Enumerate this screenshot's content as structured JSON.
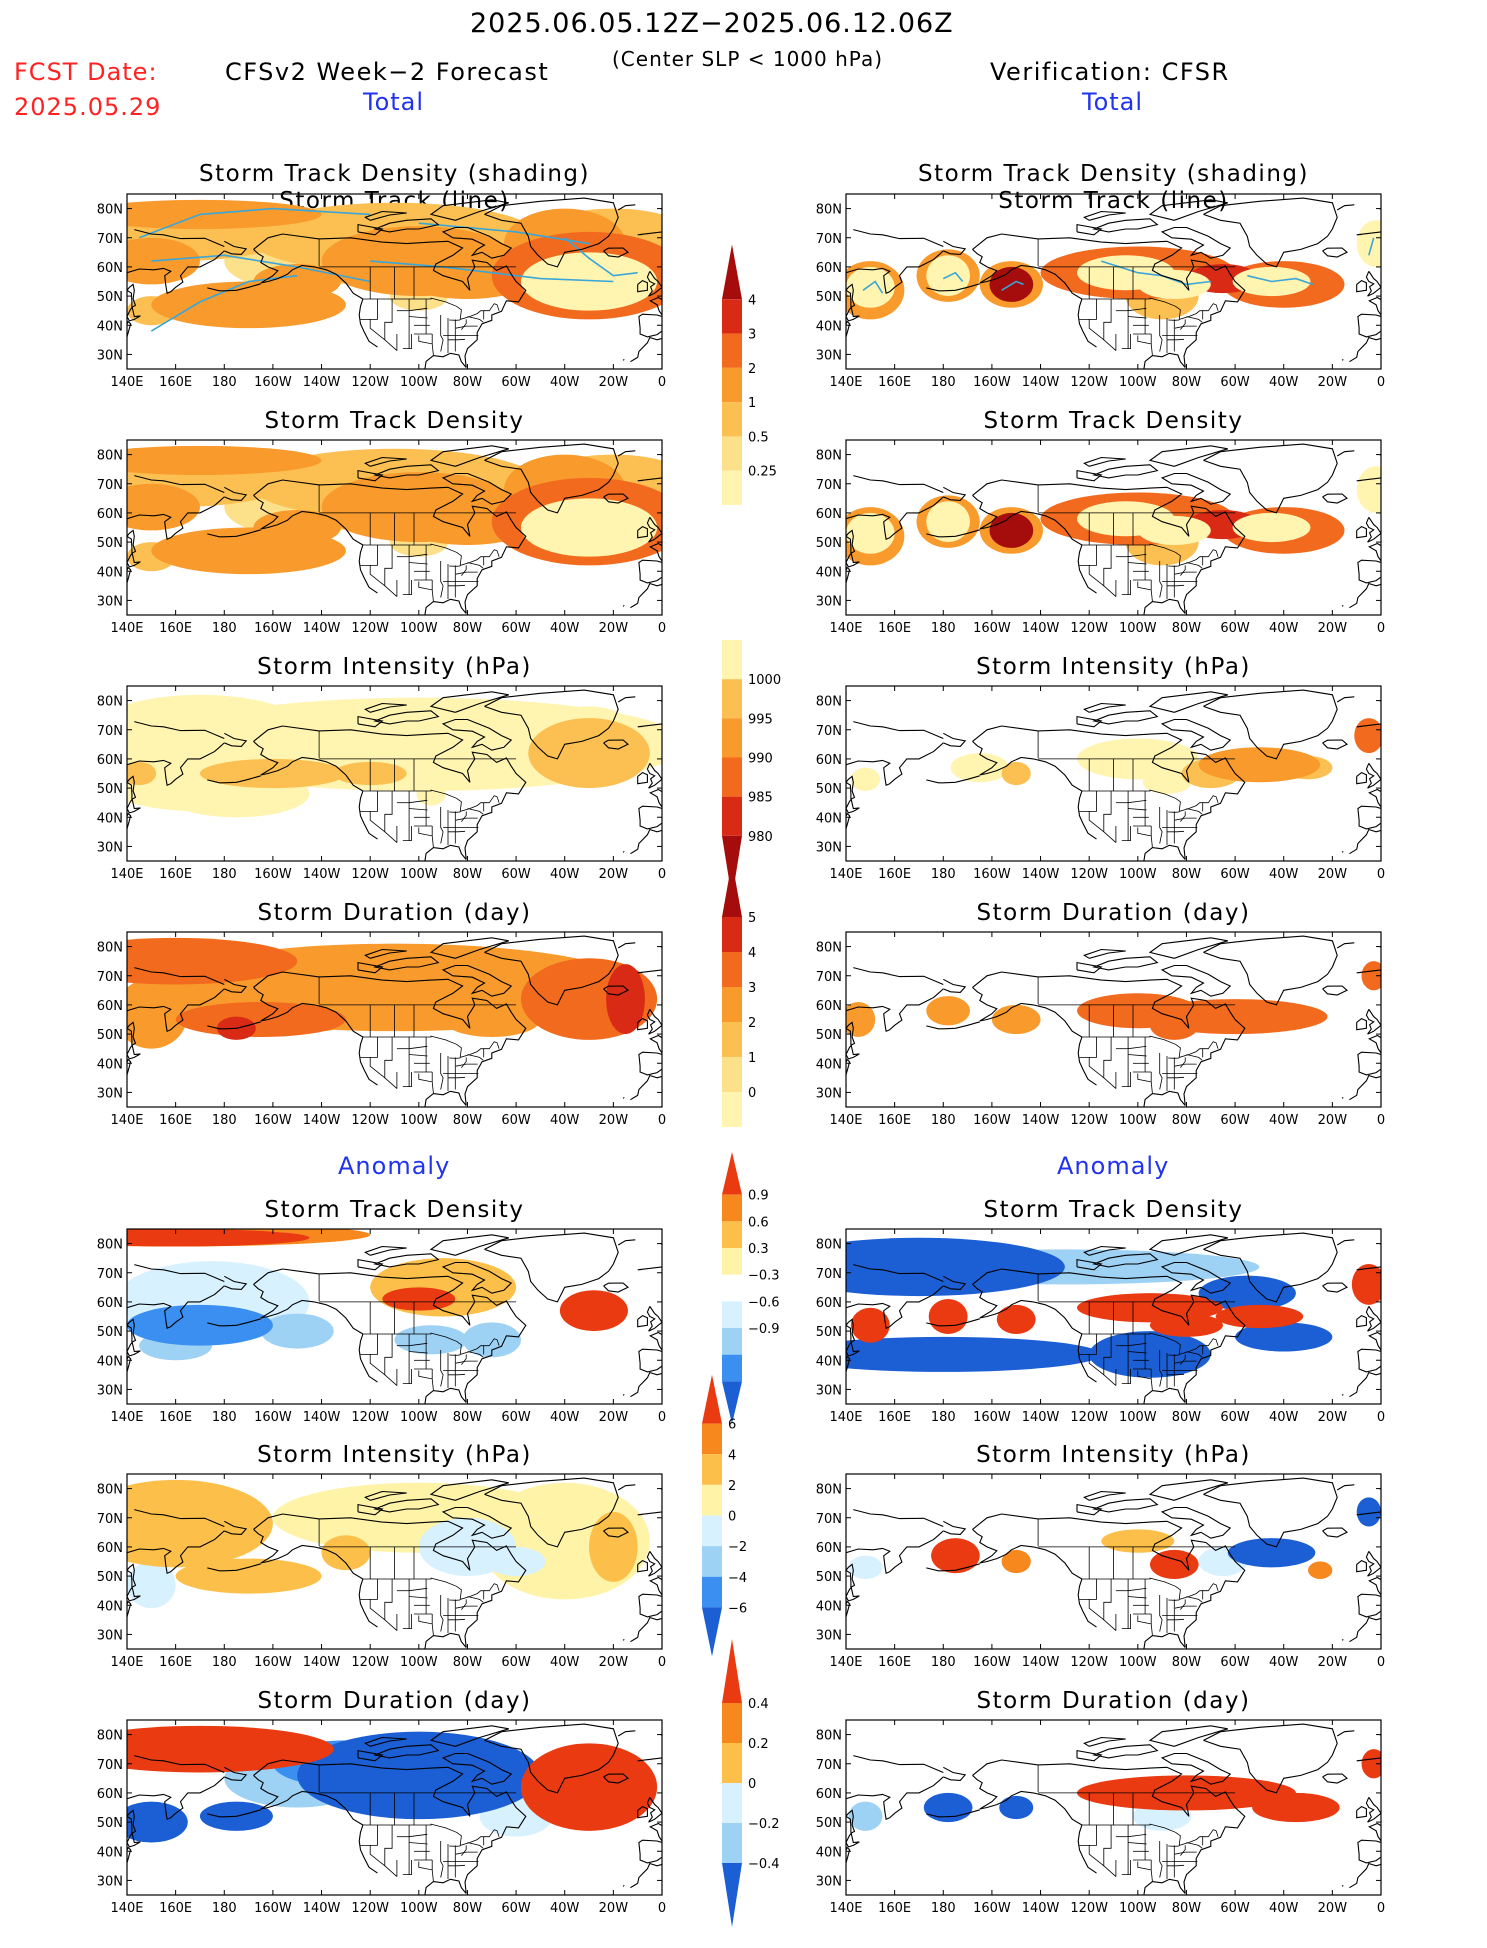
{
  "header": {
    "period": "2025.06.05.12Z−2025.06.12.06Z",
    "criterion": "(Center SLP < 1000 hPa)",
    "fcst_label": "FCST Date:",
    "fcst_date": "2025.05.29",
    "left_title": "CFSv2 Week−2 Forecast",
    "right_title": "Verification: CFSR",
    "total_label": "Total",
    "anomaly_label": "Anomaly"
  },
  "map": {
    "lon_labels": [
      "140E",
      "160E",
      "180",
      "160W",
      "140W",
      "120W",
      "100W",
      "80W",
      "60W",
      "40W",
      "20W",
      "0"
    ],
    "lat_labels": [
      "80N",
      "70N",
      "60N",
      "50N",
      "40N",
      "30N"
    ]
  },
  "colors": {
    "coast": "#000000",
    "track": "#3aa6d8",
    "dens": [
      "#fff4b0",
      "#fde08a",
      "#fcc052",
      "#f99a2c",
      "#f26a1d",
      "#d92a16",
      "#a50d0d"
    ],
    "div": [
      "#1c5fd4",
      "#3a8ff0",
      "#9ed2f5",
      "#d8f1ff",
      "#ffffff",
      "#fff3a8",
      "#fcc04a",
      "#f7881e",
      "#ea3a12"
    ]
  },
  "panels": [
    {
      "id": "p1",
      "col": "left",
      "row": 1,
      "title_lines": [
        "Storm Track (line)",
        "Storm Track Density (shading)"
      ],
      "kind": "seq",
      "tracks": true,
      "pattern": "fc_density"
    },
    {
      "id": "p2",
      "col": "right",
      "row": 1,
      "title_lines": [
        "Storm Track (line)",
        "Storm Track Density (shading)"
      ],
      "kind": "seq",
      "tracks": true,
      "pattern": "ob_density"
    },
    {
      "id": "p3",
      "col": "left",
      "row": 2,
      "title_lines": [
        "Storm Track Density"
      ],
      "kind": "seq",
      "tracks": false,
      "pattern": "fc_density"
    },
    {
      "id": "p4",
      "col": "right",
      "row": 2,
      "title_lines": [
        "Storm Track Density"
      ],
      "kind": "seq",
      "tracks": false,
      "pattern": "ob_density"
    },
    {
      "id": "p5",
      "col": "left",
      "row": 3,
      "title_lines": [
        "Storm Intensity (hPa)"
      ],
      "kind": "int",
      "tracks": false,
      "pattern": "fc_intensity"
    },
    {
      "id": "p6",
      "col": "right",
      "row": 3,
      "title_lines": [
        "Storm Intensity (hPa)"
      ],
      "kind": "int",
      "tracks": false,
      "pattern": "ob_intensity"
    },
    {
      "id": "p7",
      "col": "left",
      "row": 4,
      "title_lines": [
        "Storm Duration (day)"
      ],
      "kind": "seq",
      "tracks": false,
      "pattern": "fc_duration"
    },
    {
      "id": "p8",
      "col": "right",
      "row": 4,
      "title_lines": [
        "Storm Duration (day)"
      ],
      "kind": "seq",
      "tracks": false,
      "pattern": "ob_duration"
    },
    {
      "id": "p9",
      "col": "left",
      "row": 5,
      "title_lines": [
        "Storm Track Density"
      ],
      "kind": "div",
      "tracks": false,
      "pattern": "fc_anom_density"
    },
    {
      "id": "p10",
      "col": "right",
      "row": 5,
      "title_lines": [
        "Storm Track Density"
      ],
      "kind": "div",
      "tracks": false,
      "pattern": "ob_anom_density"
    },
    {
      "id": "p11",
      "col": "left",
      "row": 6,
      "title_lines": [
        "Storm Intensity (hPa)"
      ],
      "kind": "div",
      "tracks": false,
      "pattern": "fc_anom_intensity"
    },
    {
      "id": "p12",
      "col": "right",
      "row": 6,
      "title_lines": [
        "Storm Intensity (hPa)"
      ],
      "kind": "div",
      "tracks": false,
      "pattern": "ob_anom_intensity"
    },
    {
      "id": "p13",
      "col": "left",
      "row": 7,
      "title_lines": [
        "Storm Duration (day)"
      ],
      "kind": "div",
      "tracks": false,
      "pattern": "fc_anom_duration"
    },
    {
      "id": "p14",
      "col": "right",
      "row": 7,
      "title_lines": [
        "Storm Duration (day)"
      ],
      "kind": "div",
      "tracks": false,
      "pattern": "ob_anom_duration"
    }
  ],
  "colorbars": [
    {
      "id": "cb1",
      "labels": [
        "4",
        "3",
        "2",
        "1",
        "0.5",
        "0.25"
      ],
      "colors": [
        "#a50d0d",
        "#d92a16",
        "#f26a1d",
        "#f99a2c",
        "#fcc052",
        "#fde08a",
        "#fff4b0"
      ],
      "arrow": "top"
    },
    {
      "id": "cb2",
      "labels": [
        "1000",
        "995",
        "990",
        "985",
        "980"
      ],
      "colors": [
        "#fff4b0",
        "#fcc052",
        "#f99a2c",
        "#f26a1d",
        "#d92a16",
        "#a50d0d"
      ],
      "arrow": "bottom"
    },
    {
      "id": "cb3",
      "labels": [
        "5",
        "4",
        "3",
        "2",
        "1",
        "0"
      ],
      "colors": [
        "#a50d0d",
        "#d92a16",
        "#f26a1d",
        "#f99a2c",
        "#fcc052",
        "#fde08a",
        "#fff4b0"
      ],
      "arrow": "top"
    },
    {
      "id": "cb4",
      "labels": [
        "0.9",
        "0.6",
        "0.3",
        "−0.3",
        "−0.6",
        "−0.9"
      ],
      "colors": [
        "#ea3a12",
        "#f7881e",
        "#fcc04a",
        "#fff3a8",
        "#ffffff",
        "#d8f1ff",
        "#9ed2f5",
        "#3a8ff0",
        "#1c5fd4"
      ],
      "arrow": "both"
    },
    {
      "id": "cb5",
      "labels": [
        "6",
        "4",
        "2",
        "0",
        "−2",
        "−4",
        "−6"
      ],
      "colors": [
        "#ea3a12",
        "#f7881e",
        "#fcc04a",
        "#fff3a8",
        "#d8f1ff",
        "#9ed2f5",
        "#3a8ff0",
        "#1c5fd4"
      ],
      "arrow": "both"
    },
    {
      "id": "cb6",
      "labels": [
        "0.4",
        "0.2",
        "0",
        "−0.2",
        "−0.4"
      ],
      "colors": [
        "#ea3a12",
        "#f7881e",
        "#fcc04a",
        "#d8f1ff",
        "#9ed2f5",
        "#1c5fd4"
      ],
      "arrow": "both"
    }
  ],
  "chart_data": {
    "type": "heatmap",
    "description_fields": [
      "storm track density",
      "storm intensity (hPa)",
      "storm duration (day)"
    ],
    "xlim": [
      "140E",
      "0"
    ],
    "ylim": [
      "25N",
      "85N"
    ],
    "panels_total": [
      "CFSv2 Week-2 Forecast",
      "Verification: CFSR"
    ],
    "scales": {
      "density_total": [
        0.25,
        0.5,
        1,
        2,
        3,
        4
      ],
      "intensity_total": [
        1000,
        995,
        990,
        985,
        980
      ],
      "duration_total": [
        0,
        1,
        2,
        3,
        4,
        5
      ],
      "density_anomaly": [
        -0.9,
        -0.6,
        -0.3,
        0.3,
        0.6,
        0.9
      ],
      "intensity_anomaly": [
        -6,
        -4,
        -2,
        0,
        2,
        4,
        6
      ],
      "duration_anomaly": [
        -0.4,
        -0.2,
        0,
        0.2,
        0.4
      ]
    }
  }
}
